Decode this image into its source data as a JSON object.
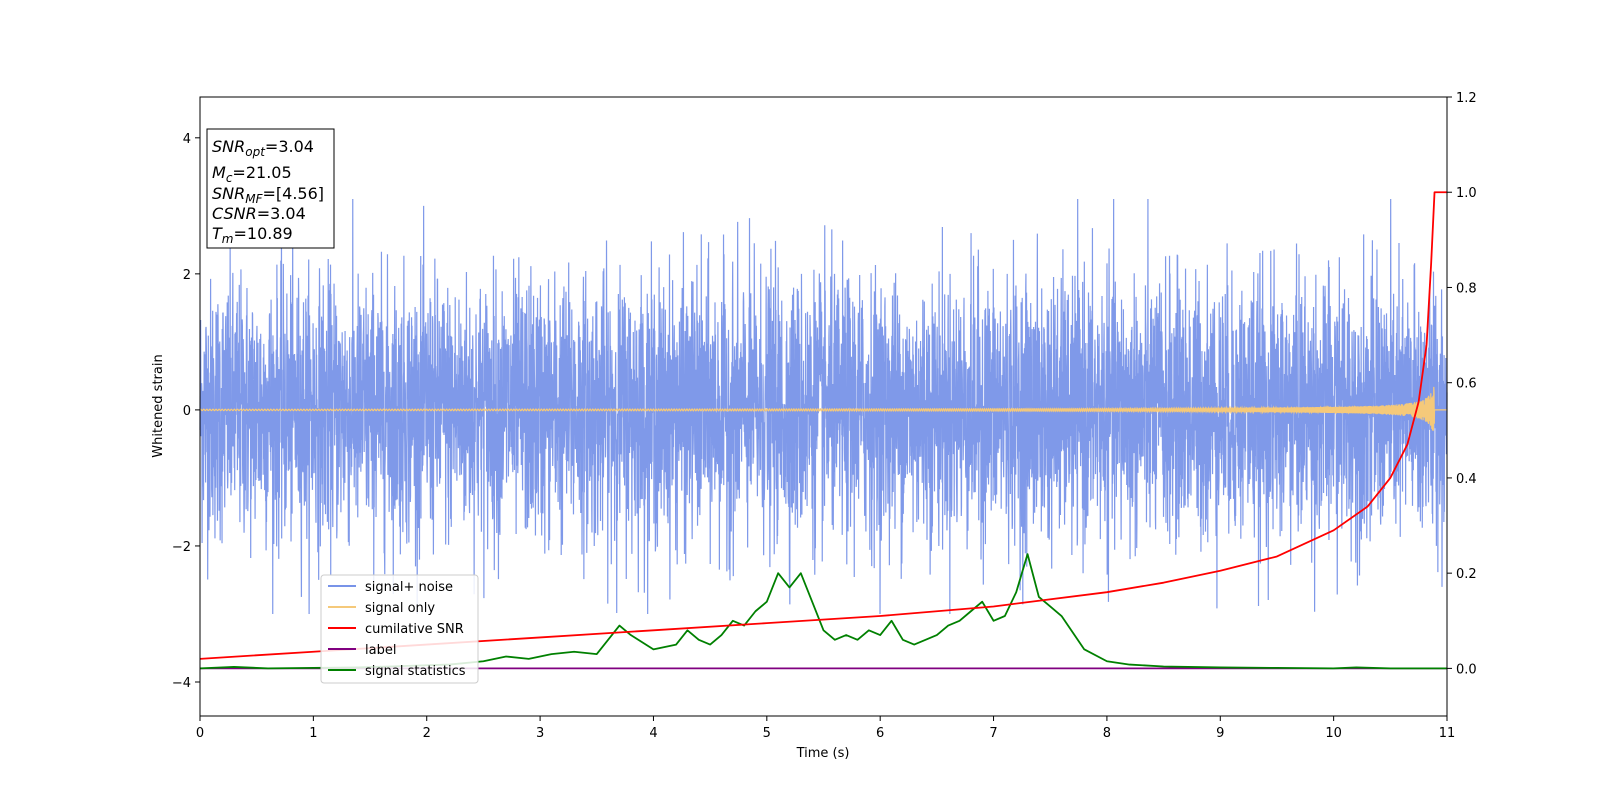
{
  "chart_data": {
    "type": "line",
    "xlabel": "Time (s)",
    "ylabel": "Whitened strain",
    "xlim": [
      0,
      11
    ],
    "ylim_left": [
      -4.5,
      4.6
    ],
    "ylim_right": [
      -0.1,
      1.2
    ],
    "x_ticks": [
      "0",
      "1",
      "2",
      "3",
      "4",
      "5",
      "6",
      "7",
      "8",
      "9",
      "10",
      "11"
    ],
    "y_ticks_left": [
      "4",
      "2",
      "0",
      "−2",
      "−4"
    ],
    "y_ticks_right": [
      "1.2",
      "1.0",
      "0.8",
      "0.6",
      "0.4",
      "0.2",
      "0.0"
    ],
    "grid": false,
    "legend_position": "lower-left",
    "info_box": {
      "snr_opt": {
        "main": "SNR",
        "sub": "opt",
        "value": "=3.04"
      },
      "mc": {
        "main": "M",
        "sub": "c",
        "value": "=21.05"
      },
      "snr_mf": {
        "main": "SNR",
        "sub": "MF",
        "value": "=[4.56]"
      },
      "csnr": {
        "main": "CSNR",
        "value": "=3.04"
      },
      "tm": {
        "main": "T",
        "sub": "m",
        "value": "=10.89"
      }
    },
    "series": [
      {
        "name": "signal+ noise",
        "color": "#7893e8",
        "axis": "left",
        "description_shape": "white noise, std ~0.9"
      },
      {
        "name": "signal only",
        "color": "#f5c97a",
        "axis": "left",
        "chirp_end_amplitude": 0.45,
        "chirp_end_time": 10.89
      },
      {
        "name": "cumilative SNR",
        "color": "#ff0000",
        "axis": "right",
        "x": [
          0,
          1,
          2,
          3,
          4,
          5,
          6,
          7,
          8,
          8.5,
          9,
          9.5,
          10,
          10.3,
          10.5,
          10.65,
          10.75,
          10.82,
          10.86,
          10.89,
          10.95,
          11
        ],
        "y": [
          0.02,
          0.035,
          0.05,
          0.065,
          0.08,
          0.095,
          0.11,
          0.13,
          0.16,
          0.18,
          0.205,
          0.235,
          0.29,
          0.34,
          0.4,
          0.47,
          0.56,
          0.68,
          0.85,
          1.0,
          1.0,
          1.0
        ]
      },
      {
        "name": "label",
        "color": "#800080",
        "axis": "right",
        "x": [
          0,
          11
        ],
        "y": [
          0,
          0
        ]
      },
      {
        "name": "signal statistics",
        "color": "#008000",
        "axis": "right",
        "x": [
          0,
          0.3,
          0.6,
          1.0,
          1.4,
          1.8,
          2.2,
          2.5,
          2.7,
          2.9,
          3.1,
          3.3,
          3.5,
          3.6,
          3.7,
          3.8,
          4.0,
          4.2,
          4.3,
          4.4,
          4.5,
          4.6,
          4.7,
          4.8,
          4.9,
          5.0,
          5.1,
          5.2,
          5.3,
          5.4,
          5.5,
          5.6,
          5.7,
          5.8,
          5.9,
          6.0,
          6.1,
          6.2,
          6.3,
          6.4,
          6.5,
          6.6,
          6.7,
          6.8,
          6.9,
          7.0,
          7.1,
          7.2,
          7.3,
          7.4,
          7.5,
          7.6,
          7.8,
          8.0,
          8.2,
          8.5,
          9.0,
          9.5,
          10.0,
          10.2,
          10.5,
          11.0
        ],
        "y": [
          0.0,
          0.003,
          0.0,
          0.001,
          0.002,
          0.005,
          0.008,
          0.015,
          0.025,
          0.02,
          0.03,
          0.035,
          0.03,
          0.06,
          0.09,
          0.07,
          0.04,
          0.05,
          0.08,
          0.06,
          0.05,
          0.07,
          0.1,
          0.09,
          0.12,
          0.14,
          0.2,
          0.17,
          0.2,
          0.14,
          0.08,
          0.06,
          0.07,
          0.06,
          0.08,
          0.07,
          0.1,
          0.06,
          0.05,
          0.06,
          0.07,
          0.09,
          0.1,
          0.12,
          0.14,
          0.1,
          0.11,
          0.16,
          0.24,
          0.15,
          0.13,
          0.11,
          0.04,
          0.015,
          0.008,
          0.004,
          0.002,
          0.001,
          0.0,
          0.002,
          0.0,
          0.0
        ]
      }
    ]
  }
}
